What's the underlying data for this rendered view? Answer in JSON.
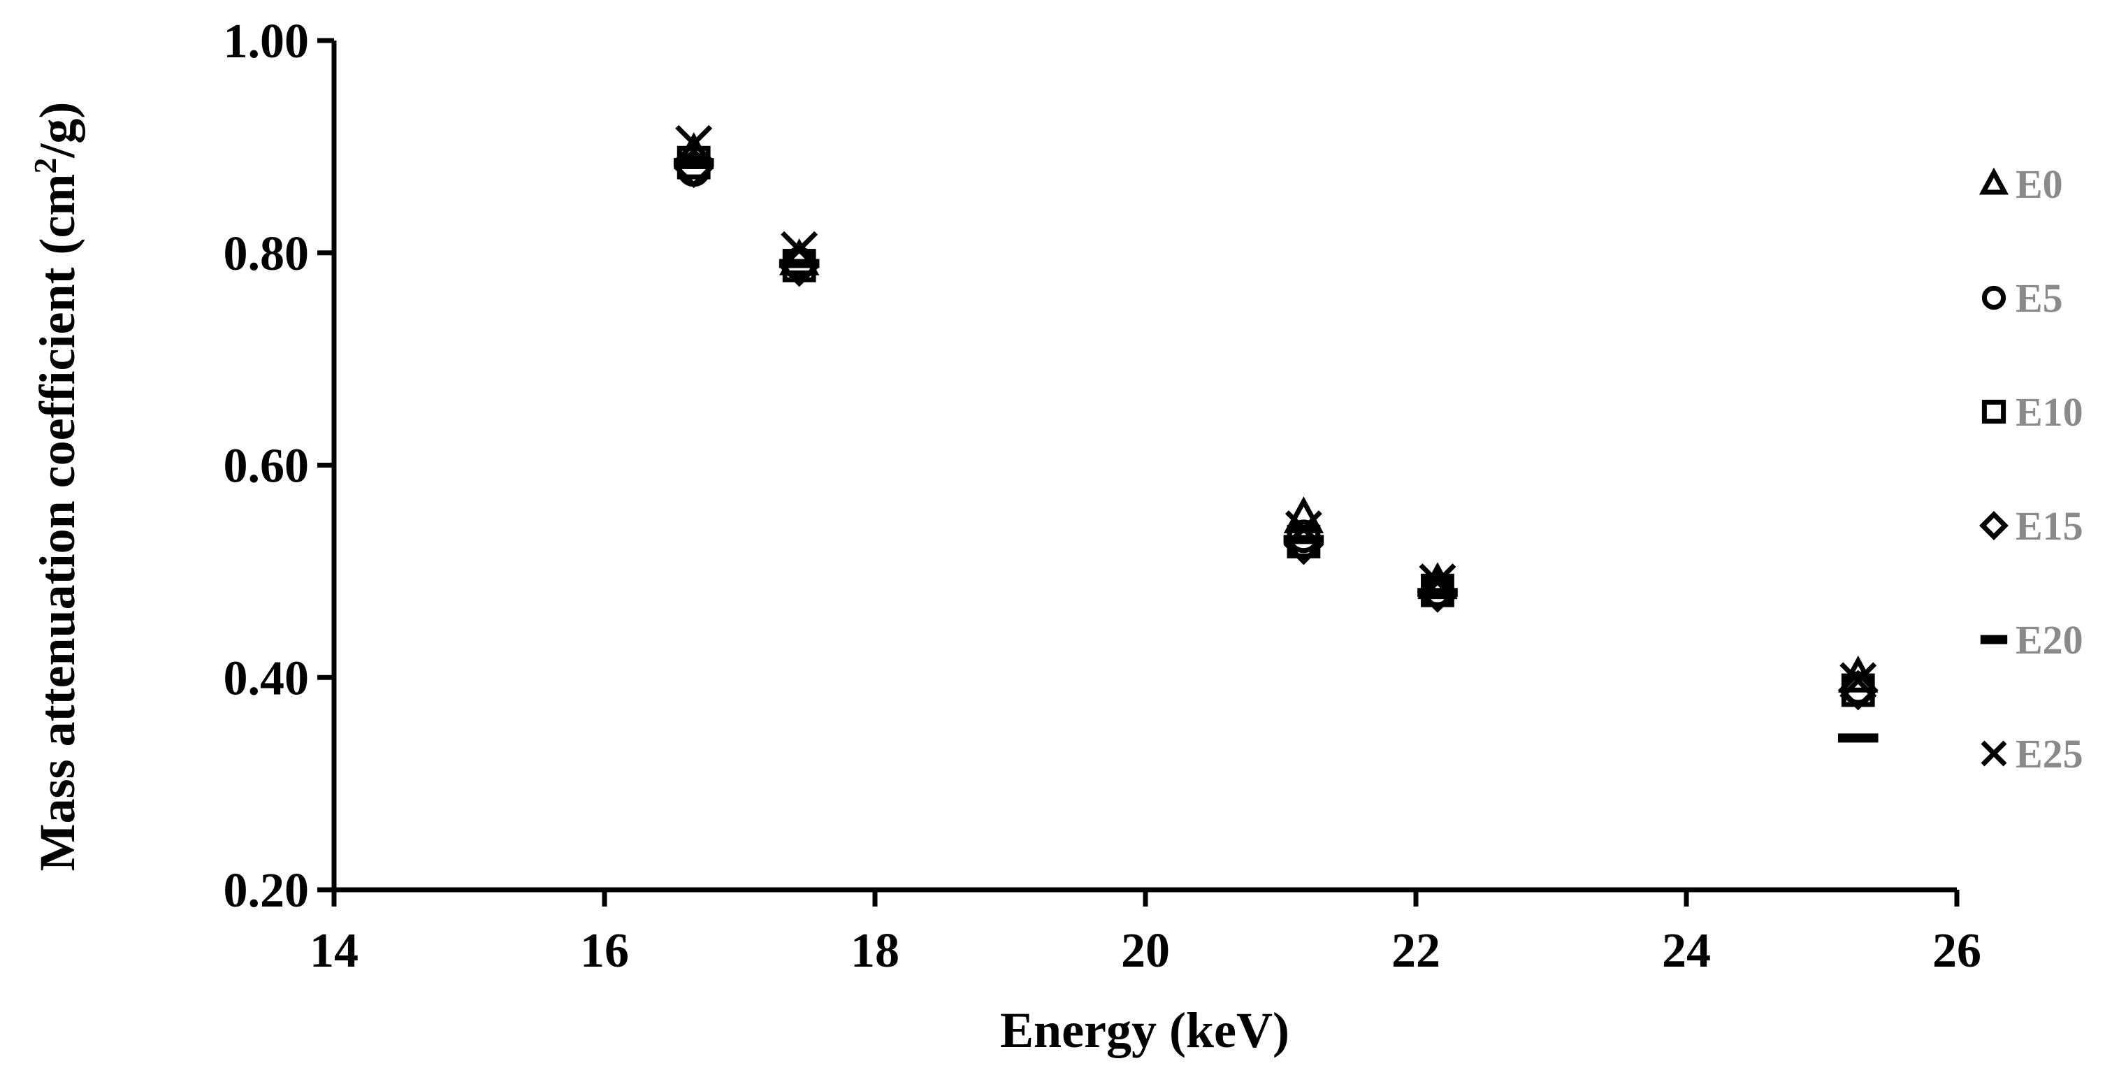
{
  "chart_data": {
    "type": "scatter",
    "title": "",
    "xlabel": "Energy (keV)",
    "ylabel_main": "Mass attenuation coefficient (cm",
    "ylabel_sup": "2",
    "ylabel_tail": "/g)",
    "xlim": [
      14,
      26
    ],
    "ylim": [
      0.2,
      1.0
    ],
    "xticks": [
      14,
      16,
      18,
      20,
      22,
      24,
      26
    ],
    "yticks": [
      0.2,
      0.4,
      0.6,
      0.8,
      1.0
    ],
    "xtick_labels": [
      "14",
      "16",
      "18",
      "20",
      "22",
      "24",
      "26"
    ],
    "ytick_labels": [
      "0.20",
      "0.40",
      "0.60",
      "0.80",
      "1.00"
    ],
    "legend_position": "right",
    "x": [
      16.66,
      17.44,
      21.17,
      22.16,
      25.27
    ],
    "series": [
      {
        "name": "E0",
        "marker": "triangle",
        "values": [
          0.893,
          0.793,
          0.55,
          0.488,
          0.4
        ]
      },
      {
        "name": "E5",
        "marker": "circle",
        "values": [
          0.878,
          0.79,
          0.533,
          0.482,
          0.39
        ]
      },
      {
        "name": "E10",
        "marker": "square",
        "values": [
          0.885,
          0.788,
          0.528,
          0.482,
          0.388
        ]
      },
      {
        "name": "E15",
        "marker": "diamond",
        "values": [
          0.88,
          0.787,
          0.525,
          0.48,
          0.388
        ]
      },
      {
        "name": "E20",
        "marker": "dash",
        "values": [
          0.885,
          0.79,
          0.53,
          0.48,
          0.343
        ]
      },
      {
        "name": "E25",
        "marker": "cross",
        "values": [
          0.903,
          0.803,
          0.54,
          0.49,
          0.397
        ]
      }
    ]
  }
}
